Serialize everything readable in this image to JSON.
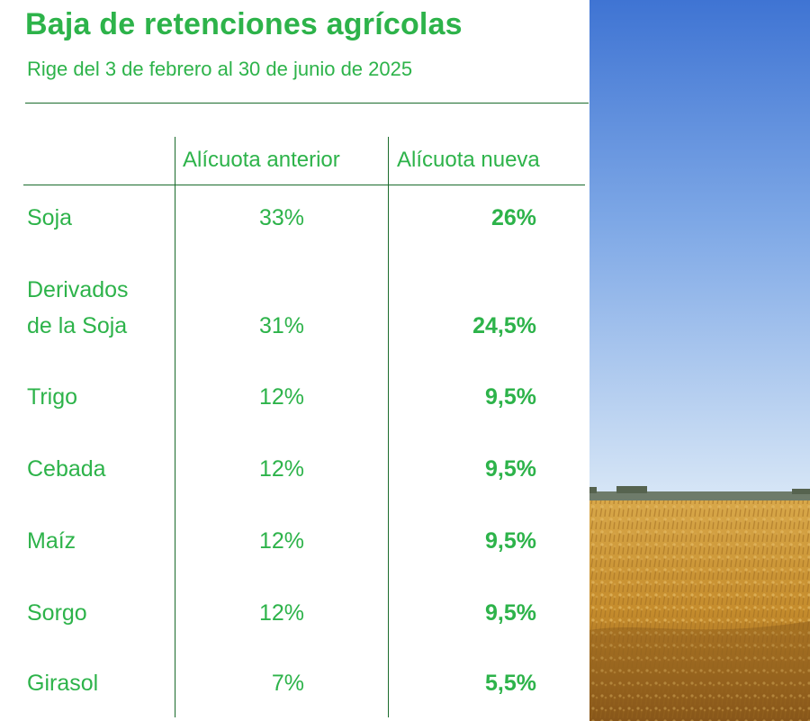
{
  "header": {
    "title": "Baja de retenciones agrícolas",
    "subtitle": "Rige del 3 de febrero al 30 de junio de 2025"
  },
  "table": {
    "columns": [
      "Alícuota anterior",
      "Alícuota nueva"
    ],
    "rows": [
      {
        "name_lines": [
          "Soja"
        ],
        "prev": "33%",
        "new": "26%"
      },
      {
        "name_lines": [
          "Derivados",
          "de la Soja"
        ],
        "prev": "31%",
        "new": "24,5%"
      },
      {
        "name_lines": [
          "Trigo"
        ],
        "prev": "12%",
        "new": "9,5%"
      },
      {
        "name_lines": [
          "Cebada"
        ],
        "prev": "12%",
        "new": "9,5%"
      },
      {
        "name_lines": [
          "Maíz"
        ],
        "prev": "12%",
        "new": "9,5%"
      },
      {
        "name_lines": [
          "Sorgo"
        ],
        "prev": "12%",
        "new": "9,5%"
      },
      {
        "name_lines": [
          "Girasol"
        ],
        "prev": "7%",
        "new": "5,5%"
      }
    ]
  },
  "colors": {
    "accent": "#2db34a",
    "rule": "#1a6b2c",
    "sky_top": "#4a7ed8",
    "sky_bottom": "#cfe0f4",
    "field": "#c9952e"
  },
  "image": {
    "icon": "wheat-field-photo"
  }
}
